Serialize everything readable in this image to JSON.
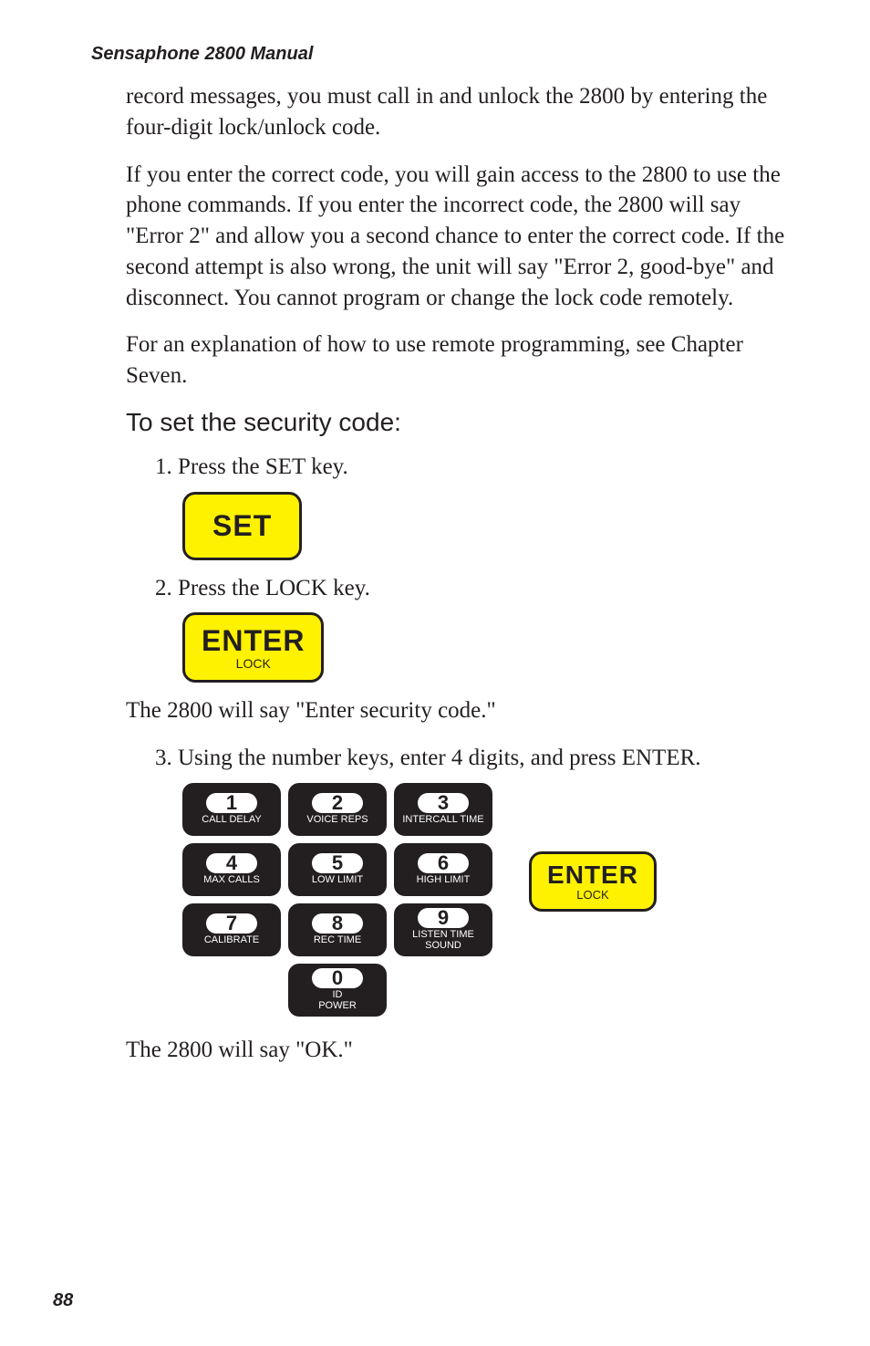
{
  "header": "Sensaphone 2800 Manual",
  "para1": "record messages, you must call in and unlock the 2800 by entering the four-digit lock/unlock code.",
  "para2": "If you enter the correct code, you will gain access to the 2800 to use the phone commands. If you enter the incorrect code, the 2800 will say \"Error 2\" and allow you a second chance to enter the correct code. If the second attempt is also wrong, the unit will say \"Error 2, good-bye\" and disconnect. You cannot program or change the lock code remotely.",
  "para3": "For an explanation of how to use remote programming, see Chapter Seven.",
  "section_title": "To set the security code:",
  "step1": "1. Press the SET key.",
  "step2": "2. Press the LOCK key.",
  "mid_text": "The 2800 will say \"Enter security code.\"",
  "step3": "3. Using the number keys, enter 4 digits, and press ENTER.",
  "final_text": "The 2800 will say \"OK.\"",
  "page_num": "88",
  "keys": {
    "set": {
      "main": "SET"
    },
    "enter": {
      "main": "ENTER",
      "sub": "LOCK"
    },
    "enter2": {
      "main": "ENTER",
      "sub": "LOCK"
    },
    "pad": [
      {
        "num": "1",
        "label": "CALL DELAY"
      },
      {
        "num": "2",
        "label": "VOICE REPS"
      },
      {
        "num": "3",
        "label": "INTERCALL TIME"
      },
      {
        "num": "4",
        "label": "MAX CALLS"
      },
      {
        "num": "5",
        "label": "LOW LIMIT"
      },
      {
        "num": "6",
        "label": "HIGH LIMIT"
      },
      {
        "num": "7",
        "label": "CALIBRATE"
      },
      {
        "num": "8",
        "label": "REC TIME"
      },
      {
        "num": "9",
        "label": "LISTEN TIME\nSOUND"
      },
      {
        "num": "0",
        "label": "ID\nPOWER"
      }
    ]
  },
  "colors": {
    "yellow": "#fff200",
    "black": "#231f20",
    "white": "#ffffff"
  }
}
